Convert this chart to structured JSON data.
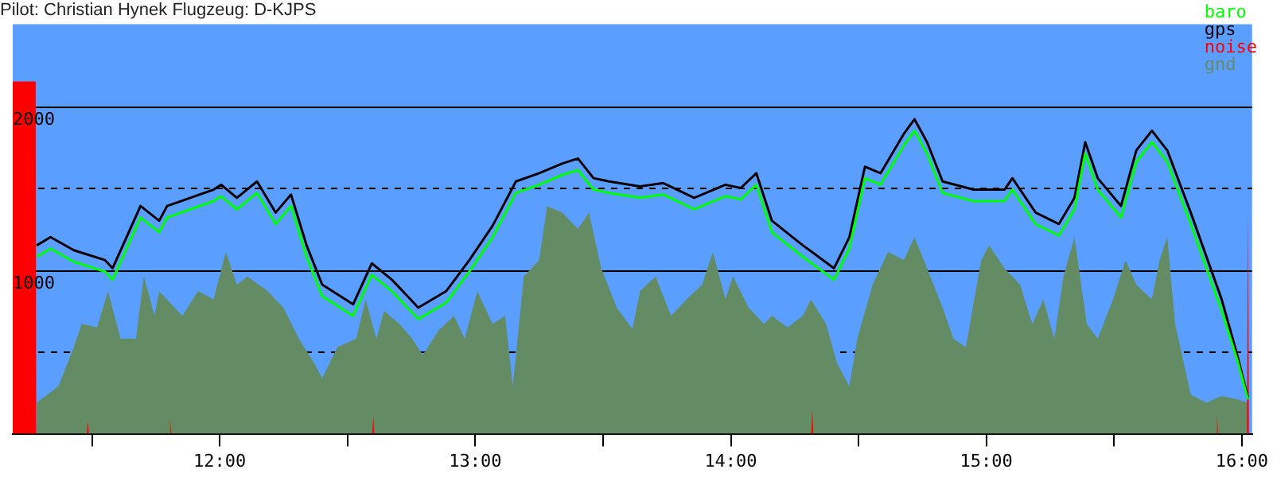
{
  "chart_data": {
    "type": "line",
    "title": "Pilot: Christian Hynek Flugzeug: D-KJPS",
    "x": [
      11.284,
      11.338,
      11.429,
      11.551,
      11.581,
      11.69,
      11.763,
      11.794,
      11.885,
      11.976,
      12.006,
      12.067,
      12.146,
      12.219,
      12.279,
      12.34,
      12.401,
      12.522,
      12.595,
      12.674,
      12.777,
      12.886,
      12.977,
      13.068,
      13.159,
      13.25,
      13.341,
      13.402,
      13.463,
      13.524,
      13.645,
      13.736,
      13.857,
      13.979,
      14.039,
      14.1,
      14.161,
      14.282,
      14.404,
      14.464,
      14.525,
      14.586,
      14.677,
      14.719,
      14.768,
      14.829,
      14.95,
      15.071,
      15.102,
      15.193,
      15.284,
      15.345,
      15.387,
      15.436,
      15.527,
      15.587,
      15.648,
      15.708,
      15.8,
      15.921,
      15.982,
      16.024
    ],
    "series": [
      {
        "name": "baro",
        "color": "#00ff00",
        "type": "line",
        "values": [
          1080,
          1130,
          1050,
          990,
          940,
          1320,
          1230,
          1320,
          1370,
          1420,
          1450,
          1370,
          1470,
          1280,
          1390,
          1080,
          840,
          720,
          970,
          870,
          700,
          800,
          990,
          1200,
          1470,
          1520,
          1580,
          1610,
          1490,
          1470,
          1440,
          1460,
          1370,
          1450,
          1430,
          1520,
          1230,
          1080,
          940,
          1130,
          1560,
          1520,
          1760,
          1850,
          1710,
          1470,
          1420,
          1420,
          1490,
          1280,
          1210,
          1370,
          1710,
          1490,
          1320,
          1660,
          1780,
          1660,
          1280,
          750,
          450,
          210
        ]
      },
      {
        "name": "gps",
        "color": "#000000",
        "type": "line",
        "values": [
          1150,
          1200,
          1120,
          1060,
          1010,
          1390,
          1300,
          1390,
          1440,
          1490,
          1520,
          1440,
          1540,
          1350,
          1460,
          1150,
          910,
          790,
          1040,
          940,
          770,
          870,
          1060,
          1270,
          1540,
          1590,
          1650,
          1680,
          1560,
          1540,
          1510,
          1530,
          1440,
          1520,
          1500,
          1590,
          1300,
          1150,
          1010,
          1200,
          1630,
          1590,
          1830,
          1920,
          1780,
          1540,
          1490,
          1490,
          1560,
          1350,
          1280,
          1440,
          1780,
          1560,
          1390,
          1730,
          1850,
          1730,
          1350,
          820,
          480,
          220
        ]
      },
      {
        "name": "noise",
        "color": "#ff0000",
        "type": "area",
        "x": [
          11.19,
          11.28,
          11.282,
          11.48,
          11.484,
          11.488,
          11.802,
          11.806,
          11.81,
          12.597,
          12.601,
          12.605,
          14.315,
          14.319,
          14.323,
          15.899,
          15.903,
          15.907,
          16.02,
          16.024,
          16.028
        ],
        "values": [
          2150,
          2150,
          0,
          0,
          80,
          0,
          0,
          100,
          0,
          0,
          110,
          0,
          0,
          150,
          0,
          0,
          120,
          0,
          0,
          1360,
          0
        ]
      },
      {
        "name": "gnd",
        "color": "#648c64",
        "type": "area",
        "x": [
          11.284,
          11.369,
          11.429,
          11.46,
          11.52,
          11.563,
          11.612,
          11.672,
          11.703,
          11.745,
          11.763,
          11.854,
          11.915,
          11.976,
          12.024,
          12.067,
          12.109,
          12.188,
          12.249,
          12.31,
          12.37,
          12.401,
          12.461,
          12.534,
          12.571,
          12.613,
          12.643,
          12.704,
          12.753,
          12.795,
          12.856,
          12.917,
          12.959,
          13.008,
          13.068,
          13.117,
          13.147,
          13.19,
          13.25,
          13.281,
          13.341,
          13.402,
          13.445,
          13.493,
          13.554,
          13.615,
          13.645,
          13.706,
          13.766,
          13.827,
          13.888,
          13.93,
          13.979,
          14.009,
          14.07,
          14.13,
          14.161,
          14.222,
          14.282,
          14.313,
          14.373,
          14.416,
          14.464,
          14.495,
          14.555,
          14.616,
          14.677,
          14.719,
          14.768,
          14.829,
          14.871,
          14.92,
          14.98,
          15.011,
          15.071,
          15.132,
          15.18,
          15.223,
          15.266,
          15.302,
          15.345,
          15.393,
          15.436,
          15.496,
          15.545,
          15.587,
          15.648,
          15.678,
          15.708,
          15.739,
          15.8,
          15.86,
          15.921,
          15.982,
          16.024
        ],
        "values": [
          190,
          290,
          530,
          670,
          650,
          870,
          580,
          580,
          960,
          720,
          870,
          720,
          870,
          820,
          1110,
          910,
          960,
          870,
          770,
          580,
          430,
          340,
          530,
          580,
          820,
          580,
          750,
          670,
          580,
          480,
          630,
          720,
          580,
          870,
          670,
          720,
          290,
          960,
          1060,
          1390,
          1350,
          1250,
          1350,
          1010,
          770,
          640,
          870,
          960,
          720,
          820,
          910,
          1110,
          820,
          960,
          770,
          670,
          720,
          650,
          720,
          820,
          670,
          430,
          290,
          580,
          910,
          1110,
          1060,
          1200,
          1010,
          770,
          580,
          530,
          1060,
          1150,
          1010,
          910,
          670,
          820,
          580,
          960,
          1200,
          670,
          580,
          820,
          1060,
          910,
          820,
          1060,
          1200,
          670,
          240,
          190,
          230,
          210,
          190
        ]
      }
    ],
    "xlim": [
      11.19,
      16.04
    ],
    "xticks": [
      {
        "value": 11.5,
        "label": null
      },
      {
        "value": 12,
        "label": "12:00"
      },
      {
        "value": 12.5,
        "label": null
      },
      {
        "value": 13,
        "label": "13:00"
      },
      {
        "value": 13.5,
        "label": null
      },
      {
        "value": 14,
        "label": "14:00"
      },
      {
        "value": 14.5,
        "label": null
      },
      {
        "value": 15,
        "label": "15:00"
      },
      {
        "value": 15.5,
        "label": null
      },
      {
        "value": 16,
        "label": "16:00"
      }
    ],
    "ylim": [
      0,
      2500
    ],
    "yticks": [
      {
        "value": 500,
        "label": null
      },
      1000,
      {
        "value": 1500,
        "label": null
      },
      2000
    ],
    "grid": "y",
    "legend": "top right",
    "marker": "none"
  }
}
